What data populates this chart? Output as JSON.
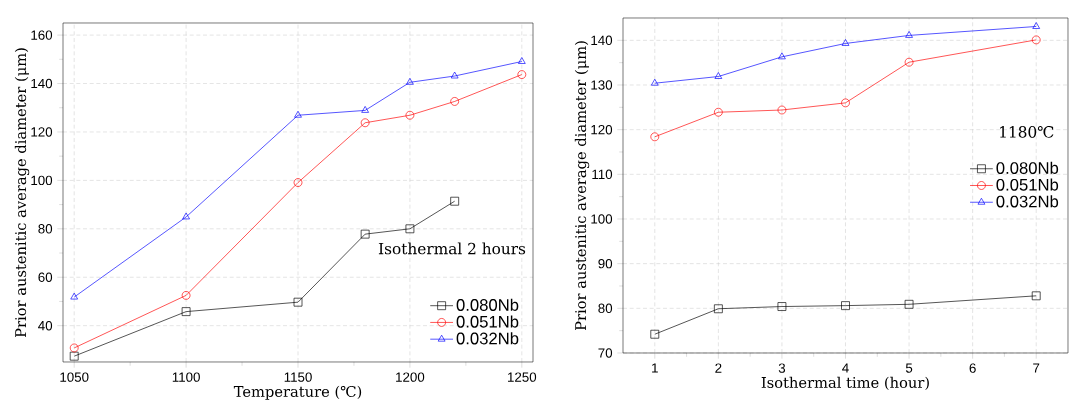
{
  "chart_data": [
    {
      "type": "line",
      "xlabel": "Temperature (℃)",
      "ylabel": "Prior austenitic average diameter (μm)",
      "annotations": [
        "Isothermal 2 hours"
      ],
      "x": [
        1050,
        1100,
        1150,
        1180,
        1200,
        1220,
        1250
      ],
      "series": [
        {
          "name": "0.080Nb",
          "color": "#000000",
          "marker": "square",
          "values": [
            27.4,
            45.8,
            49.7,
            77.8,
            80,
            91.4,
            null
          ]
        },
        {
          "name": "0.051Nb",
          "color": "#ff0000",
          "marker": "circle",
          "values": [
            30.8,
            52.5,
            99.1,
            123.8,
            126.9,
            132.6,
            143.7
          ]
        },
        {
          "name": "0.032Nb",
          "color": "#0000ff",
          "marker": "triangle",
          "values": [
            51.8,
            84.9,
            126.9,
            128.9,
            140.5,
            143.1,
            149.1
          ]
        }
      ],
      "xlim": [
        1045,
        1255
      ],
      "ylim": [
        25,
        165
      ],
      "xticks": [
        1050,
        1100,
        1150,
        1200,
        1250
      ],
      "yticks": [
        40,
        60,
        80,
        100,
        120,
        140,
        160
      ],
      "grid": true,
      "legend": "bottom right"
    },
    {
      "type": "line",
      "xlabel": "Isothermal time (hour)",
      "ylabel": "Prior austenitic average diameter (μm)",
      "annotations": [
        "1180℃"
      ],
      "x": [
        1,
        2,
        3,
        4,
        5,
        7
      ],
      "series": [
        {
          "name": "0.080Nb",
          "color": "#000000",
          "marker": "square",
          "values": [
            74.2,
            79.9,
            80.4,
            80.6,
            80.9,
            82.8
          ]
        },
        {
          "name": "0.051Nb",
          "color": "#ff0000",
          "marker": "circle",
          "values": [
            118.4,
            123.9,
            124.4,
            126.0,
            135.1,
            140.1
          ]
        },
        {
          "name": "0.032Nb",
          "color": "#0000ff",
          "marker": "triangle",
          "values": [
            130.4,
            131.9,
            136.3,
            139.3,
            141.1,
            143.1
          ]
        }
      ],
      "xlim": [
        0.5,
        7.5
      ],
      "ylim": [
        70,
        145
      ],
      "xticks": [
        1,
        2,
        3,
        4,
        5,
        6,
        7
      ],
      "yticks": [
        70,
        80,
        90,
        100,
        110,
        120,
        130,
        140
      ],
      "grid": true,
      "legend": "right"
    }
  ]
}
